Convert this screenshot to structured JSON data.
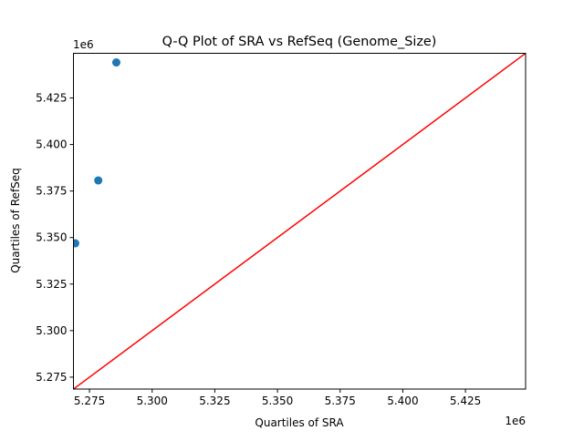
{
  "chart_data": {
    "type": "scatter",
    "title": "Q-Q Plot of SRA vs RefSeq (Genome_Size)",
    "xlabel": "Quartiles of SRA",
    "ylabel": "Quartiles of RefSeq",
    "x_offset_label": "1e6",
    "y_offset_label": "1e6",
    "xlim": [
      5.2686,
      5.449
    ],
    "ylim": [
      5.2686,
      5.449
    ],
    "x_ticks": [
      5.275,
      5.3,
      5.325,
      5.35,
      5.375,
      5.4,
      5.425
    ],
    "x_tick_labels": [
      "5.275",
      "5.300",
      "5.325",
      "5.350",
      "5.375",
      "5.400",
      "5.425"
    ],
    "y_ticks": [
      5.275,
      5.3,
      5.325,
      5.35,
      5.375,
      5.4,
      5.425
    ],
    "y_tick_labels": [
      "5.275",
      "5.300",
      "5.325",
      "5.350",
      "5.375",
      "5.400",
      "5.425"
    ],
    "points": [
      {
        "x": 5.2693,
        "y": 5.3469
      },
      {
        "x": 5.2785,
        "y": 5.3807
      },
      {
        "x": 5.2857,
        "y": 5.4441
      }
    ],
    "reference_line": {
      "from": [
        5.2686,
        5.2686
      ],
      "to": [
        5.449,
        5.449
      ],
      "color": "#ff0000"
    },
    "point_color": "#1f77b4",
    "grid": false,
    "legend": "none"
  }
}
